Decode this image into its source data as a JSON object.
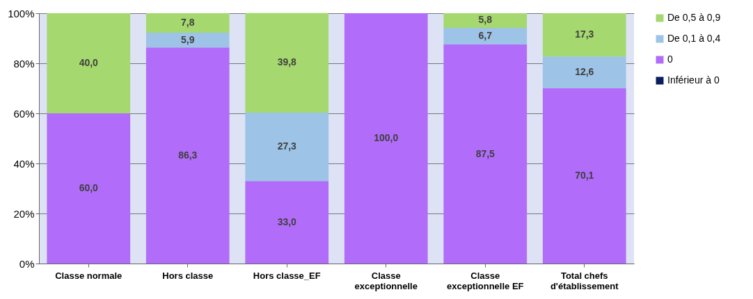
{
  "chart_data": {
    "type": "bar",
    "stacked": true,
    "categories": [
      "Classe normale",
      "Hors classe",
      "Hors classe_EF",
      "Classe exceptionnelle",
      "Classe exceptionnelle  EF",
      "Total chefs d'établissement"
    ],
    "series": [
      {
        "name": "Inférieur à 0",
        "color": "#0a1e5e",
        "values": [
          0,
          0,
          0,
          0,
          0,
          0
        ],
        "value_labels": [
          null,
          null,
          null,
          null,
          null,
          null
        ]
      },
      {
        "name": "0",
        "color": "#b16cf9",
        "values": [
          60.0,
          86.3,
          33.0,
          100.0,
          87.5,
          70.1
        ],
        "value_labels": [
          "60,0",
          "86,3",
          "33,0",
          "100,0",
          "87,5",
          "70,1"
        ]
      },
      {
        "name": "De 0,1 à 0,4",
        "color": "#9dc3e6",
        "values": [
          0,
          5.9,
          27.3,
          0,
          6.7,
          12.6
        ],
        "value_labels": [
          null,
          "5,9",
          "27,3",
          null,
          "6,7",
          "12,6"
        ]
      },
      {
        "name": "De 0,5 à 0,9",
        "color": "#a5d86e",
        "values": [
          40.0,
          7.8,
          39.8,
          0,
          5.8,
          17.3
        ],
        "value_labels": [
          "40,0",
          "7,8",
          "39,8",
          null,
          "5,8",
          "17,3"
        ]
      }
    ],
    "ylim": [
      0,
      100
    ],
    "yticks": [
      {
        "value": 0,
        "label": "0%"
      },
      {
        "value": 20,
        "label": "20%"
      },
      {
        "value": 40,
        "label": "40%"
      },
      {
        "value": 60,
        "label": "60%"
      },
      {
        "value": 80,
        "label": "80%"
      },
      {
        "value": 100,
        "label": "100%"
      }
    ],
    "grid": "y",
    "legend": "top right"
  }
}
